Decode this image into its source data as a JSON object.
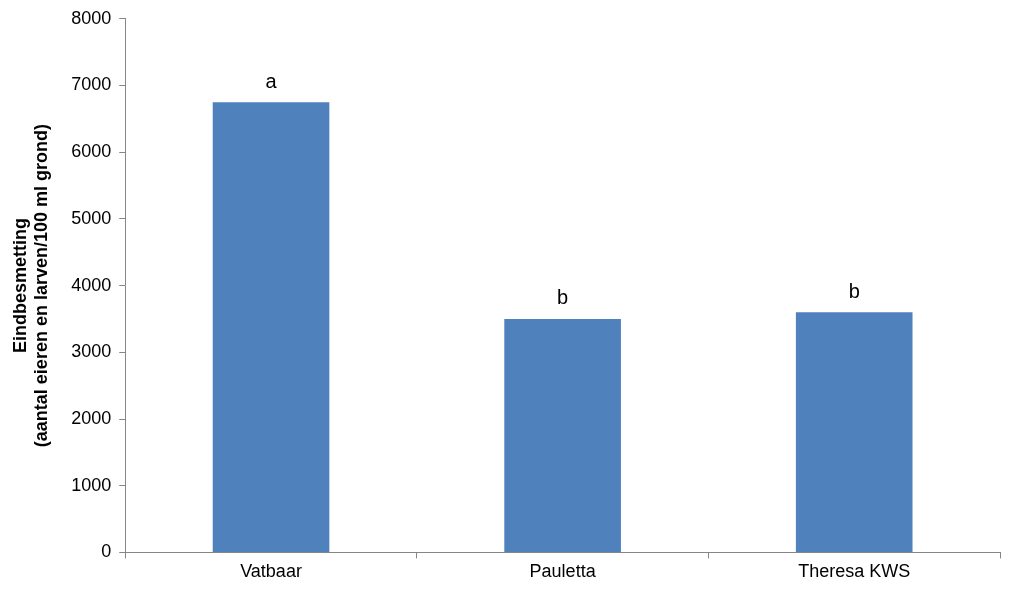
{
  "chart_data": {
    "type": "bar",
    "ylabel": [
      "Eindbesmetting",
      "(aantal eieren en larven/100 ml grond)"
    ],
    "categories": [
      "Vatbaar",
      "Pauletta",
      "Theresa KWS"
    ],
    "values": [
      6750,
      3500,
      3600
    ],
    "annotations": [
      "a",
      "b",
      "b"
    ],
    "color": "#4f81bd",
    "ylim": [
      0,
      8000
    ],
    "yticks": [
      0,
      1000,
      2000,
      3000,
      4000,
      5000,
      6000,
      7000,
      8000
    ],
    "grid": false
  }
}
